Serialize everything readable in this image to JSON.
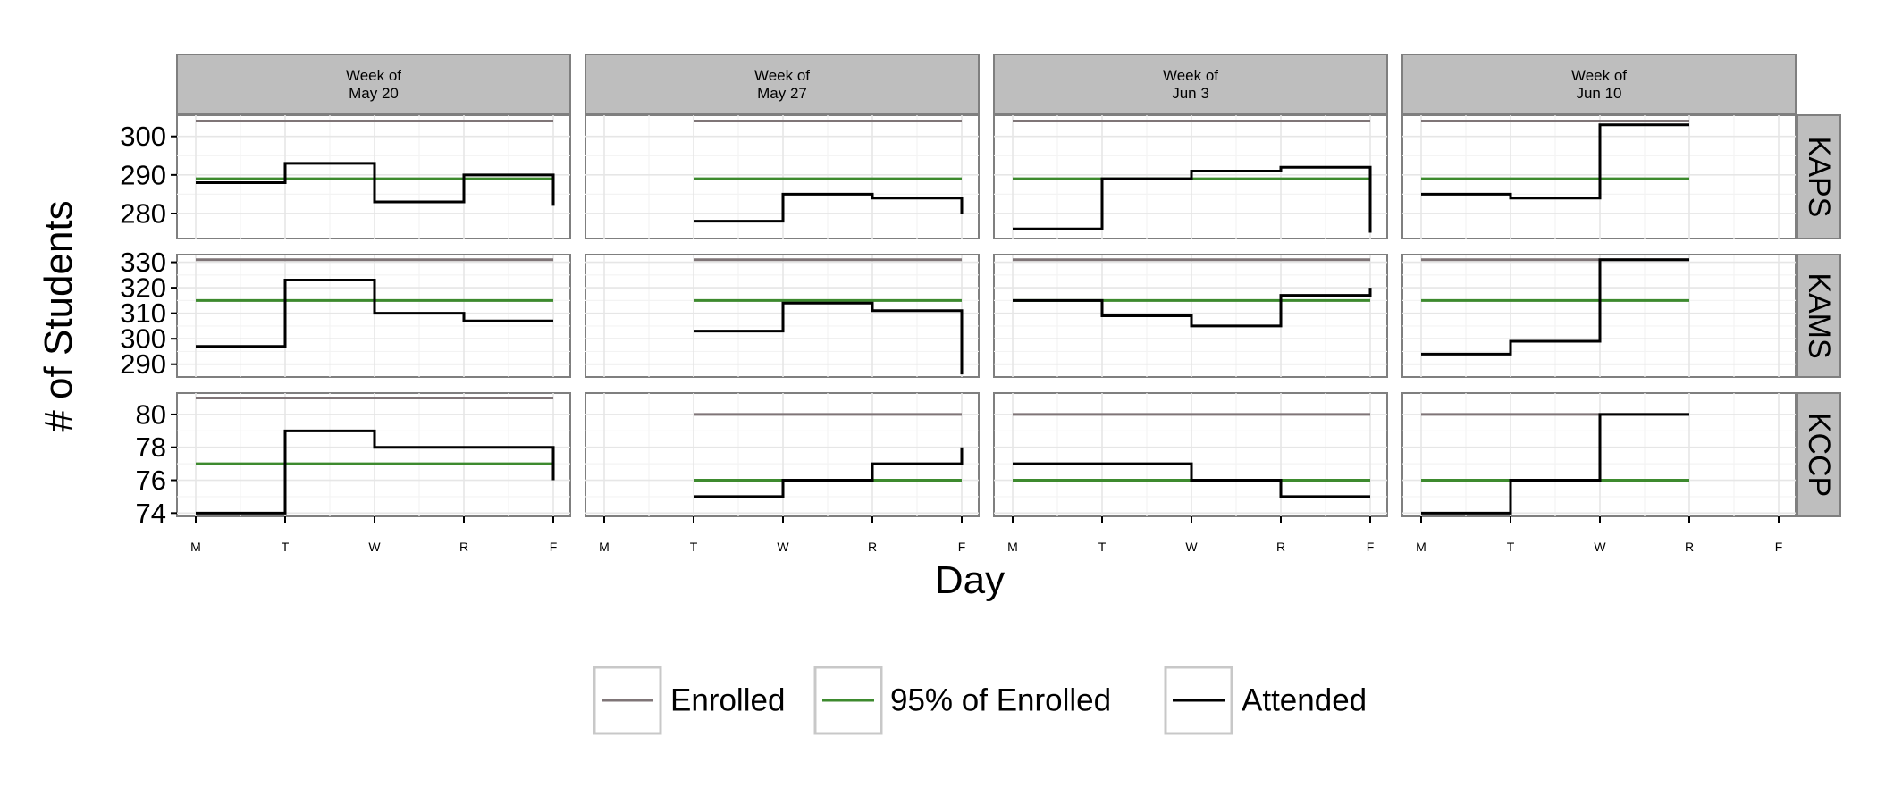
{
  "chart_data": {
    "type": "line",
    "step": true,
    "xlabel": "Day",
    "ylabel": "# of Students",
    "x_categories": [
      "M",
      "T",
      "W",
      "R",
      "F"
    ],
    "column_strips": [
      "Week of\nMay 20",
      "Week of\nMay 27",
      "Week of\nJun 3",
      "Week of\nJun 10"
    ],
    "legend": {
      "position": "bottom",
      "entries": [
        "Enrolled",
        "95% of Enrolled",
        "Attended"
      ]
    },
    "colors": {
      "Enrolled": "#7f7577",
      "95% of Enrolled": "#3d8a2e",
      "Attended": "#000000"
    },
    "grid": true,
    "rows": [
      {
        "strip": "KAPS",
        "ylim": [
          273.5,
          305.5
        ],
        "yticks": [
          280,
          290,
          300
        ],
        "panels": [
          {
            "enrolled": [
              304,
              304,
              304,
              304,
              304
            ],
            "pct95": [
              289,
              289,
              289,
              289,
              289
            ],
            "attended": [
              288,
              293,
              283,
              290,
              282
            ]
          },
          {
            "enrolled": [
              null,
              304,
              304,
              304,
              304
            ],
            "pct95": [
              null,
              289,
              289,
              289,
              289
            ],
            "attended": [
              null,
              278,
              285,
              284,
              280
            ]
          },
          {
            "enrolled": [
              304,
              304,
              304,
              304,
              304
            ],
            "pct95": [
              289,
              289,
              289,
              289,
              289
            ],
            "attended": [
              276,
              289,
              291,
              292,
              275
            ]
          },
          {
            "enrolled": [
              304,
              304,
              304,
              304,
              null
            ],
            "pct95": [
              289,
              289,
              289,
              289,
              null
            ],
            "attended": [
              285,
              284,
              303,
              303,
              null
            ]
          }
        ]
      },
      {
        "strip": "KAMS",
        "ylim": [
          285,
          333
        ],
        "yticks": [
          290,
          300,
          310,
          320,
          330
        ],
        "panels": [
          {
            "enrolled": [
              331,
              331,
              331,
              331,
              331
            ],
            "pct95": [
              315,
              315,
              315,
              315,
              315
            ],
            "attended": [
              297,
              323,
              310,
              307,
              307
            ]
          },
          {
            "enrolled": [
              null,
              331,
              331,
              331,
              331
            ],
            "pct95": [
              null,
              315,
              315,
              315,
              315
            ],
            "attended": [
              null,
              303,
              314,
              311,
              286
            ]
          },
          {
            "enrolled": [
              331,
              331,
              331,
              331,
              331
            ],
            "pct95": [
              315,
              315,
              315,
              315,
              315
            ],
            "attended": [
              315,
              309,
              305,
              317,
              320
            ]
          },
          {
            "enrolled": [
              331,
              331,
              331,
              331,
              null
            ],
            "pct95": [
              315,
              315,
              315,
              315,
              null
            ],
            "attended": [
              294,
              299,
              331,
              331,
              null
            ]
          }
        ]
      },
      {
        "strip": "KCCP",
        "ylim": [
          73.8,
          81.3
        ],
        "yticks": [
          74,
          76,
          78,
          80
        ],
        "panels": [
          {
            "enrolled": [
              81,
              81,
              81,
              81,
              81
            ],
            "pct95": [
              77,
              77,
              77,
              77,
              77
            ],
            "attended": [
              74,
              79,
              78,
              78,
              76
            ]
          },
          {
            "enrolled": [
              null,
              80,
              80,
              80,
              80
            ],
            "pct95": [
              null,
              76,
              76,
              76,
              76
            ],
            "attended": [
              null,
              75,
              76,
              77,
              78
            ]
          },
          {
            "enrolled": [
              80,
              80,
              80,
              80,
              80
            ],
            "pct95": [
              76,
              76,
              76,
              76,
              76
            ],
            "attended": [
              77,
              77,
              76,
              75,
              75
            ]
          },
          {
            "enrolled": [
              80,
              80,
              80,
              80,
              null
            ],
            "pct95": [
              76,
              76,
              76,
              76,
              null
            ],
            "attended": [
              74,
              76,
              80,
              80,
              null
            ]
          }
        ]
      }
    ]
  }
}
